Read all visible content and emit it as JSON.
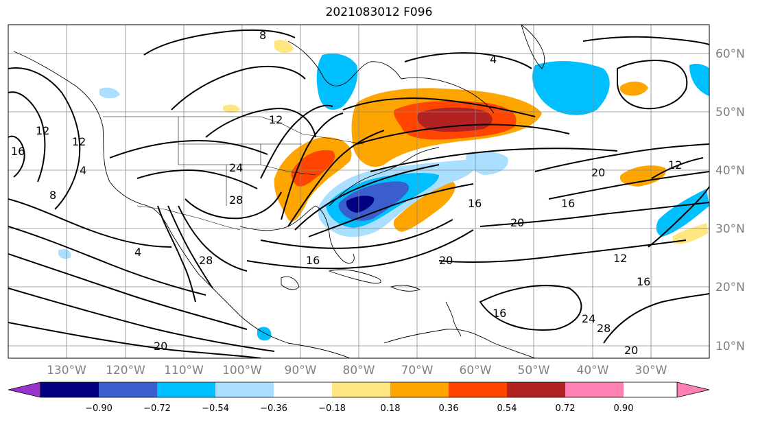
{
  "title": "2021083012 F096",
  "lat_labels": [
    "60°N",
    "50°N",
    "40°N",
    "30°N",
    "20°N",
    "10°N"
  ],
  "lon_labels": [
    "130°W",
    "120°W",
    "110°W",
    "100°W",
    "90°W",
    "80°W",
    "70°W",
    "60°W",
    "50°W",
    "40°W",
    "30°W"
  ],
  "colorbar": {
    "ticks": [
      "−0.90",
      "−0.72",
      "−0.54",
      "−0.36",
      "−0.18",
      "0.18",
      "0.36",
      "0.54",
      "0.72",
      "0.90"
    ],
    "colors": [
      "#9933cc",
      "#000080",
      "#3a5fcd",
      "#00bfff",
      "#aadfff",
      "#ffffff",
      "#ffe680",
      "#ffa500",
      "#ff4500",
      "#b22222",
      "#ff80b3"
    ]
  },
  "contour_labels": [
    "8",
    "4",
    "12",
    "16",
    "12",
    "4",
    "8",
    "12",
    "24",
    "28",
    "4",
    "28",
    "16",
    "20",
    "16",
    "20",
    "16",
    "20",
    "12",
    "16",
    "24",
    "28",
    "20",
    "16",
    "12",
    "20"
  ]
}
